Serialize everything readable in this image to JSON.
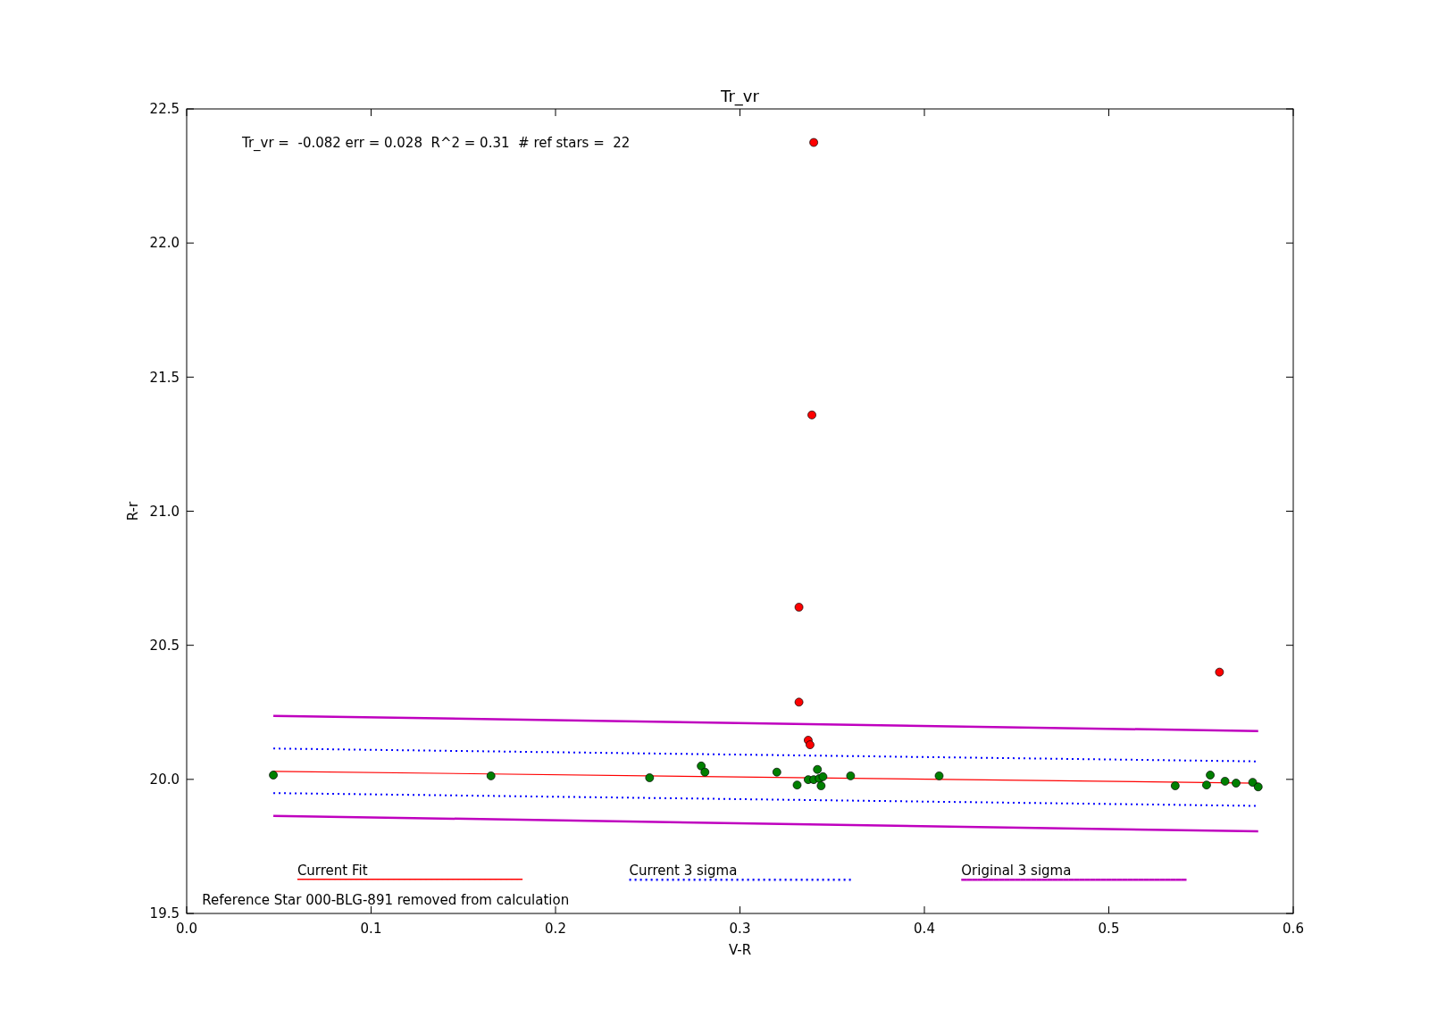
{
  "chart_data": {
    "type": "scatter",
    "title": "Tr_vr",
    "xlabel": "V-R",
    "ylabel": "R-r",
    "xlim": [
      0.0,
      0.6
    ],
    "ylim": [
      19.5,
      22.5
    ],
    "xticks": [
      {
        "value": 0.0,
        "label": "0.0"
      },
      {
        "value": 0.1,
        "label": "0.1"
      },
      {
        "value": 0.2,
        "label": "0.2"
      },
      {
        "value": 0.3,
        "label": "0.3"
      },
      {
        "value": 0.4,
        "label": "0.4"
      },
      {
        "value": 0.5,
        "label": "0.5"
      },
      {
        "value": 0.6,
        "label": "0.6"
      }
    ],
    "yticks": [
      {
        "value": 19.5,
        "label": "19.5"
      },
      {
        "value": 20.0,
        "label": "20.0"
      },
      {
        "value": 20.5,
        "label": "20.5"
      },
      {
        "value": 21.0,
        "label": "21.0"
      },
      {
        "value": 21.5,
        "label": "21.5"
      },
      {
        "value": 22.0,
        "label": "22.0"
      },
      {
        "value": 22.5,
        "label": "22.5"
      }
    ],
    "grid": false,
    "legend": "bottom",
    "annotations": [
      "Tr_vr =  -0.082 err = 0.028  R^2 = 0.31  # ref stars =  22",
      "Reference Star 000-BLG-891 removed from calculation"
    ],
    "series": [
      {
        "type": "line",
        "name": "Current Fit",
        "color": "#ff0000",
        "line_style": "solid",
        "marker": "none",
        "x": [
          0.047,
          0.581
        ],
        "values": [
          20.03,
          19.986
        ]
      },
      {
        "type": "line",
        "name": "Current 3 sigma",
        "color": "#0000ff",
        "line_style": "dotted",
        "marker": "none",
        "x": [
          0.047,
          0.581
        ],
        "values": [
          20.115,
          20.067
        ]
      },
      {
        "type": "line",
        "color": "#0000ff",
        "line_style": "dotted",
        "marker": "none",
        "x": [
          0.047,
          0.581
        ],
        "values": [
          19.949,
          19.901
        ]
      },
      {
        "type": "line",
        "name": "Original 3 sigma",
        "color": "#bf00bf",
        "line_style": "solid",
        "marker": "none",
        "x": [
          0.047,
          0.581
        ],
        "values": [
          20.237,
          20.18
        ]
      },
      {
        "type": "line",
        "color": "#bf00bf",
        "line_style": "solid",
        "marker": "none",
        "x": [
          0.047,
          0.581
        ],
        "values": [
          19.864,
          19.806
        ]
      },
      {
        "color": "#008000",
        "marker": "circle",
        "x": [
          0.047,
          0.165,
          0.251,
          0.279,
          0.281,
          0.32,
          0.331,
          0.337,
          0.34,
          0.342,
          0.343,
          0.344,
          0.345,
          0.36,
          0.408,
          0.536,
          0.553,
          0.555,
          0.563,
          0.569,
          0.578,
          0.581
        ],
        "values": [
          20.016,
          20.013,
          20.006,
          20.05,
          20.027,
          20.027,
          19.979,
          19.999,
          19.999,
          20.037,
          20.003,
          19.976,
          20.01,
          20.013,
          20.013,
          19.976,
          19.979,
          20.016,
          19.993,
          19.986,
          19.989,
          19.972
        ]
      },
      {
        "color": "#ff0000",
        "marker": "circle",
        "x": [
          0.34,
          0.339,
          0.332,
          0.332,
          0.337,
          0.338,
          0.56
        ],
        "values": [
          22.375,
          21.359,
          20.642,
          20.288,
          20.146,
          20.129,
          20.4
        ]
      }
    ]
  }
}
